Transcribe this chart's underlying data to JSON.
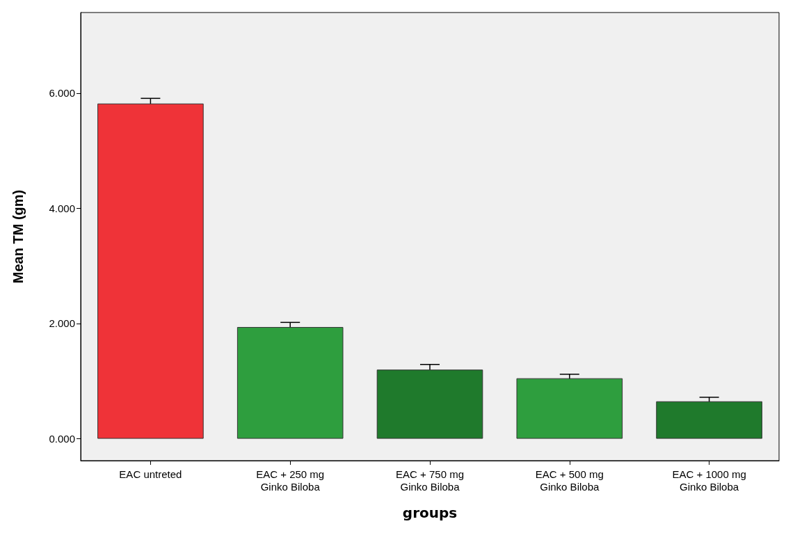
{
  "chart_data": {
    "type": "bar",
    "xlabel": "groups",
    "ylabel": "Mean TM (gm)",
    "categories": [
      "EAC untreted",
      "EAC + 250 mg\nGinko Biloba",
      "EAC + 750 mg\nGinko Biloba",
      "EAC + 500 mg\nGinko Biloba",
      "EAC + 1000 mg\nGinko Biloba"
    ],
    "values": [
      5.82,
      1.94,
      1.2,
      1.05,
      0.65
    ],
    "errors": [
      0.09,
      0.08,
      0.09,
      0.07,
      0.07
    ],
    "colors": [
      "#ef3338",
      "#2e9e3e",
      "#1f7a2c",
      "#2e9e3e",
      "#1f7a2c"
    ],
    "ylim": [
      -0.38,
      7.4
    ],
    "yticks": [
      {
        "value": 0,
        "label": "0.000"
      },
      {
        "value": 2,
        "label": "2.000"
      },
      {
        "value": 4,
        "label": "4.000"
      },
      {
        "value": 6,
        "label": "6.000"
      }
    ],
    "grid": false
  }
}
